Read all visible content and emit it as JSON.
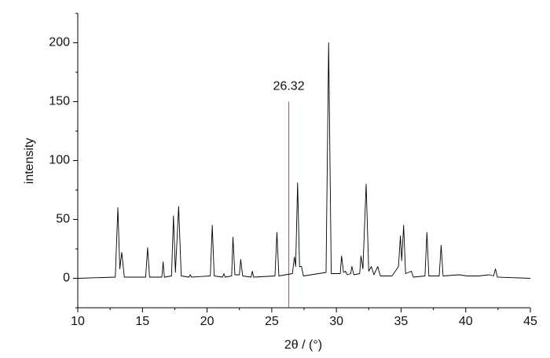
{
  "chart_data": {
    "type": "line",
    "xlabel": "2θ / (°)",
    "ylabel": "intensity",
    "xlim": [
      10,
      45
    ],
    "xticks": [
      10,
      15,
      20,
      25,
      30,
      35,
      40,
      45
    ],
    "ylim": [
      -25,
      225
    ],
    "yticks": [
      0,
      50,
      100,
      150,
      200
    ],
    "yminorticks": [
      -25,
      25,
      75,
      125,
      175,
      225
    ],
    "xminorticks": [
      12.5,
      17.5,
      22.5,
      27.5,
      32.5,
      37.5,
      42.5
    ],
    "series": [
      {
        "color": "#000000",
        "x": [
          10,
          12.9,
          13.1,
          13.25,
          13.4,
          13.6,
          15.25,
          15.4,
          15.55,
          16.5,
          16.6,
          16.7,
          17.25,
          17.4,
          17.55,
          17.8,
          18.0,
          18.6,
          18.7,
          18.8,
          20.25,
          20.4,
          20.55,
          21.2,
          21.3,
          21.4,
          21.9,
          22.0,
          22.15,
          22.5,
          22.6,
          22.75,
          23.4,
          23.5,
          23.6,
          25.25,
          25.4,
          25.55,
          26.6,
          26.75,
          26.85,
          27.0,
          27.15,
          27.3,
          27.45,
          29.2,
          29.4,
          29.6,
          30.3,
          30.4,
          30.55,
          30.7,
          30.85,
          31.1,
          31.2,
          31.35,
          31.8,
          31.9,
          32.05,
          32.3,
          32.5,
          32.7,
          32.9,
          33.2,
          33.4,
          34.3,
          34.8,
          34.95,
          35.05,
          35.2,
          35.35,
          35.8,
          35.95,
          36.85,
          37.0,
          37.15,
          37.95,
          38.1,
          38.25,
          39.5,
          40.1,
          41.0,
          41.8,
          42.15,
          42.3,
          42.45,
          45
        ],
        "values": [
          0,
          1,
          60,
          8,
          22,
          1,
          1,
          26,
          1,
          1,
          14,
          1,
          2,
          53,
          5,
          61,
          2,
          1,
          3,
          1,
          2,
          45,
          2,
          1,
          4,
          1,
          2,
          35,
          3,
          3,
          16,
          2,
          1,
          6,
          1,
          2,
          39,
          2,
          4,
          18,
          10,
          81,
          10,
          10,
          2,
          5,
          200,
          4,
          4,
          19,
          5,
          6,
          3,
          4,
          10,
          3,
          4,
          19,
          8,
          80,
          6,
          10,
          3,
          10,
          2,
          2,
          10,
          36,
          15,
          45,
          4,
          6,
          1,
          2,
          39,
          2,
          2,
          28,
          2,
          3,
          2,
          2,
          3,
          2,
          8,
          1,
          0
        ]
      }
    ],
    "marker": {
      "x": 26.32,
      "top": 150,
      "color": "#e8332e"
    }
  }
}
